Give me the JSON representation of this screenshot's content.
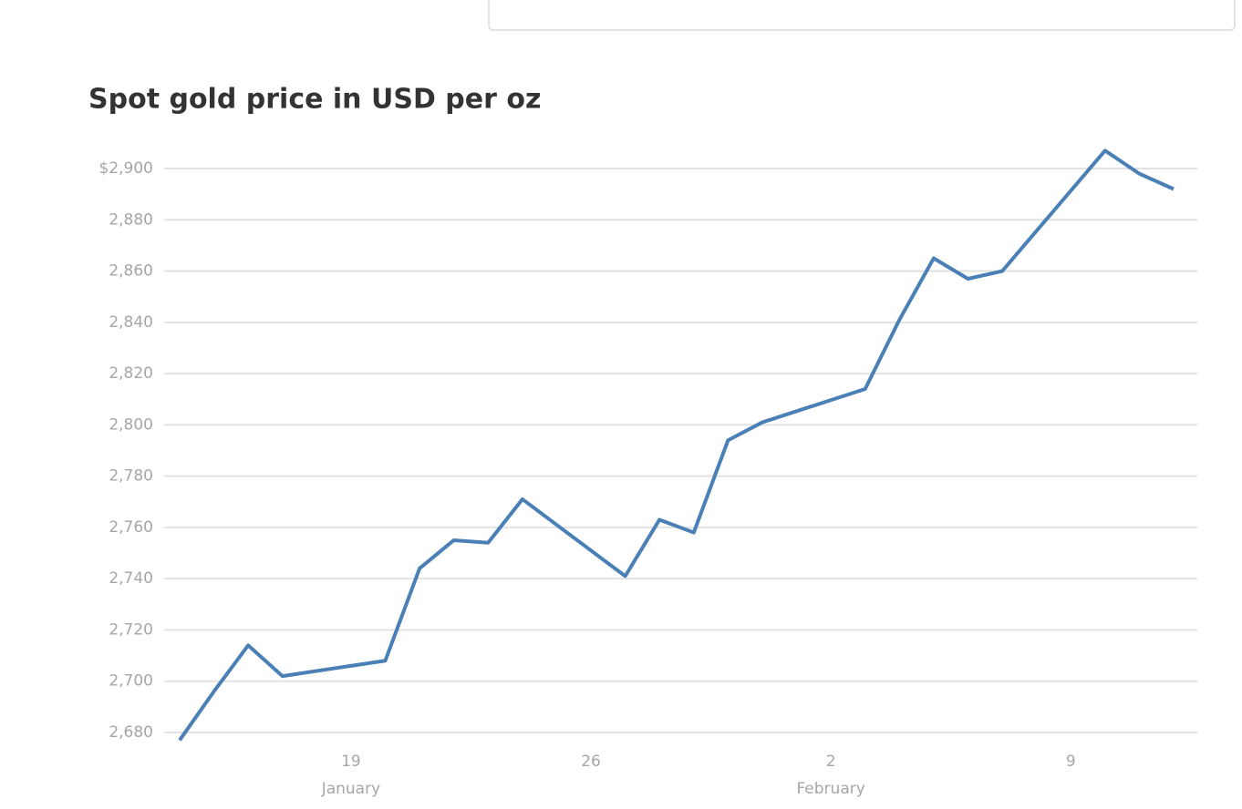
{
  "chart_data": {
    "type": "line",
    "title": "Spot gold price in USD per oz",
    "x": [
      "01-14",
      "01-15",
      "01-16",
      "01-17",
      "01-20",
      "01-21",
      "01-22",
      "01-23",
      "01-24",
      "01-27",
      "01-28",
      "01-29",
      "01-30",
      "01-31",
      "02-03",
      "02-04",
      "02-05",
      "02-06",
      "02-07",
      "02-10",
      "02-11",
      "02-12"
    ],
    "series": [
      {
        "name": "Spot gold",
        "color": "#4a80b5",
        "values": [
          2677,
          2696,
          2714,
          2702,
          2708,
          2744,
          2755,
          2754,
          2771,
          2741,
          2763,
          2758,
          2794,
          2801,
          2814,
          2841,
          2865,
          2857,
          2860,
          2907,
          2898,
          2892
        ]
      }
    ],
    "xlim": [
      "01-14",
      "02-12"
    ],
    "xticks": [
      {
        "value": "01-19",
        "label": "19"
      },
      {
        "value": "01-26",
        "label": "26"
      },
      {
        "value": "02-02",
        "label": "2"
      },
      {
        "value": "02-09",
        "label": "9"
      }
    ],
    "x_month_labels": [
      {
        "value": "01-19",
        "label": "January"
      },
      {
        "value": "02-02",
        "label": "February"
      }
    ],
    "ylim": [
      2680,
      2900
    ],
    "yticks": [
      {
        "value": 2680,
        "label": "2,680"
      },
      {
        "value": 2700,
        "label": "2,700"
      },
      {
        "value": 2720,
        "label": "2,720"
      },
      {
        "value": 2740,
        "label": "2,740"
      },
      {
        "value": 2760,
        "label": "2,760"
      },
      {
        "value": 2780,
        "label": "2,780"
      },
      {
        "value": 2800,
        "label": "2,800"
      },
      {
        "value": 2820,
        "label": "2,820"
      },
      {
        "value": 2840,
        "label": "2,840"
      },
      {
        "value": 2860,
        "label": "2,860"
      },
      {
        "value": 2880,
        "label": "2,880"
      },
      {
        "value": 2900,
        "label": "$2,900"
      }
    ],
    "grid": true
  }
}
